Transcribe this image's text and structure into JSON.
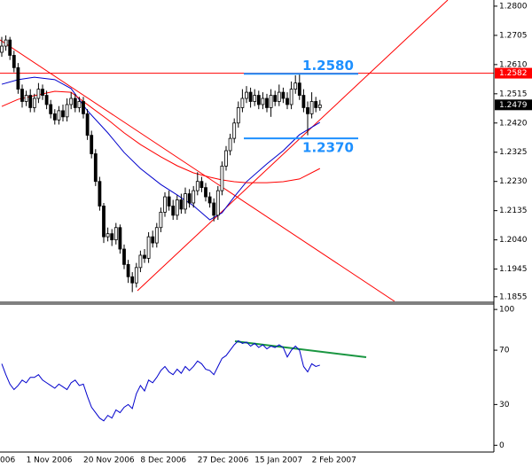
{
  "chart_data": [
    {
      "type": "candlestick",
      "ylim": [
        1.184,
        1.282
      ],
      "yticks": [
        {
          "value": 1.28,
          "label": "1.2800"
        },
        1.2705,
        {
          "value": 1.261,
          "label": "1.2610"
        },
        1.2515,
        {
          "value": 1.242,
          "label": "1.2420"
        },
        1.2325,
        {
          "value": 1.223,
          "label": "1.2230"
        },
        1.2135,
        {
          "value": 1.204,
          "label": "1.2040"
        },
        1.1945,
        1.1855
      ],
      "color": "#000000",
      "open": [
        1.265,
        1.267,
        1.269,
        1.264,
        1.26,
        1.253,
        1.249,
        1.251,
        1.247,
        1.25,
        1.253,
        1.251,
        1.248,
        1.245,
        1.243,
        1.246,
        1.244,
        1.248,
        1.25,
        1.247,
        1.249,
        1.245,
        1.238,
        1.232,
        1.223,
        1.215,
        1.205,
        1.206,
        1.204,
        1.208,
        1.201,
        1.196,
        1.192,
        1.19,
        1.195,
        1.199,
        1.198,
        1.205,
        1.203,
        1.208,
        1.213,
        1.218,
        1.215,
        1.212,
        1.217,
        1.214,
        1.219,
        1.216,
        1.22,
        1.223,
        1.221,
        1.218,
        1.216,
        1.212,
        1.22,
        1.228,
        1.233,
        1.237,
        1.242,
        1.247,
        1.25,
        1.252,
        1.249,
        1.251,
        1.248,
        1.25,
        1.247,
        1.251,
        1.249,
        1.252,
        1.25,
        1.248,
        1.253,
        1.255,
        1.251,
        1.247,
        1.245,
        1.249,
        1.247
      ],
      "high": [
        1.27,
        1.2705,
        1.27,
        1.2655,
        1.2615,
        1.2545,
        1.2525,
        1.253,
        1.2515,
        1.255,
        1.2545,
        1.2525,
        1.2495,
        1.2465,
        1.2475,
        1.248,
        1.25,
        1.252,
        1.2515,
        1.2505,
        1.2505,
        1.2465,
        1.2395,
        1.2335,
        1.2245,
        1.216,
        1.208,
        1.2075,
        1.2095,
        1.209,
        1.2025,
        1.1975,
        1.1935,
        1.1965,
        1.2005,
        1.201,
        1.2065,
        1.207,
        1.2095,
        1.2145,
        1.2195,
        1.22,
        1.217,
        1.2185,
        1.219,
        1.221,
        1.2205,
        1.2215,
        1.226,
        1.2245,
        1.2225,
        1.2195,
        1.2175,
        1.2215,
        1.2295,
        1.2345,
        1.2385,
        1.2435,
        1.249,
        1.253,
        1.254,
        1.2535,
        1.253,
        1.2525,
        1.252,
        1.2515,
        1.253,
        1.2525,
        1.2545,
        1.2535,
        1.252,
        1.2555,
        1.2575,
        1.258,
        1.253,
        1.249,
        1.252,
        1.2505,
        1.2495
      ],
      "low": [
        1.2635,
        1.2655,
        1.2625,
        1.2585,
        1.2515,
        1.247,
        1.2475,
        1.2455,
        1.2455,
        1.2485,
        1.2495,
        1.2465,
        1.2435,
        1.2415,
        1.2415,
        1.2425,
        1.2425,
        1.2465,
        1.2455,
        1.2455,
        1.2435,
        1.2365,
        1.2305,
        1.2215,
        1.2135,
        1.203,
        1.2035,
        1.202,
        1.2025,
        1.1995,
        1.1945,
        1.19,
        1.187,
        1.1885,
        1.1935,
        1.1965,
        1.1965,
        1.2015,
        1.2015,
        1.2065,
        1.2115,
        1.2135,
        1.2105,
        1.2105,
        1.2125,
        1.2125,
        1.2145,
        1.2145,
        1.2185,
        1.2195,
        1.2165,
        1.2145,
        1.21,
        1.2105,
        1.2185,
        1.2265,
        1.2315,
        1.2355,
        1.2405,
        1.2455,
        1.2485,
        1.247,
        1.2475,
        1.2465,
        1.2465,
        1.2455,
        1.244,
        1.2475,
        1.2475,
        1.2485,
        1.2465,
        1.2465,
        1.2515,
        1.2495,
        1.2455,
        1.238,
        1.2435,
        1.2455,
        1.246
      ],
      "close": [
        1.267,
        1.269,
        1.264,
        1.26,
        1.253,
        1.249,
        1.251,
        1.247,
        1.25,
        1.253,
        1.251,
        1.248,
        1.245,
        1.243,
        1.246,
        1.244,
        1.248,
        1.25,
        1.247,
        1.249,
        1.245,
        1.238,
        1.232,
        1.223,
        1.215,
        1.205,
        1.206,
        1.204,
        1.208,
        1.201,
        1.196,
        1.192,
        1.19,
        1.195,
        1.199,
        1.198,
        1.205,
        1.203,
        1.208,
        1.213,
        1.218,
        1.215,
        1.212,
        1.217,
        1.214,
        1.219,
        1.216,
        1.22,
        1.223,
        1.221,
        1.218,
        1.216,
        1.212,
        1.22,
        1.228,
        1.233,
        1.237,
        1.242,
        1.247,
        1.25,
        1.252,
        1.249,
        1.251,
        1.248,
        1.25,
        1.247,
        1.251,
        1.249,
        1.252,
        1.25,
        1.248,
        1.253,
        1.255,
        1.251,
        1.247,
        1.245,
        1.249,
        1.247,
        1.2479
      ],
      "overlays": [
        {
          "color": "#0000cc",
          "x": [
            0,
            4,
            8,
            13,
            17,
            21,
            26,
            30,
            34,
            39,
            43,
            47,
            51,
            54,
            57,
            60,
            65,
            69,
            73,
            78
          ],
          "values": [
            1.2546,
            1.2561,
            1.2569,
            1.2561,
            1.2532,
            1.246,
            1.2388,
            1.2324,
            1.2272,
            1.222,
            1.2186,
            1.2151,
            1.2105,
            1.2128,
            1.218,
            1.2229,
            1.2287,
            1.233,
            1.2382,
            1.2422
          ]
        },
        {
          "color": "#ff0000",
          "x": [
            0,
            4,
            8,
            13,
            17,
            21,
            26,
            30,
            34,
            39,
            43,
            47,
            51,
            54,
            57,
            60,
            65,
            69,
            73,
            78
          ],
          "values": [
            1.2474,
            1.2497,
            1.2509,
            1.2523,
            1.252,
            1.248,
            1.2431,
            1.2388,
            1.235,
            1.231,
            1.2281,
            1.2258,
            1.2244,
            1.2235,
            1.2229,
            1.2226,
            1.2226,
            1.2229,
            1.2238,
            1.2272
          ]
        }
      ],
      "levels": [
        {
          "value": 1.258,
          "label": "1.2580",
          "color": "#1e90ff"
        },
        {
          "value": 1.237,
          "label": "1.2370",
          "color": "#1e90ff"
        }
      ],
      "reference_line": {
        "value": 1.2582,
        "label": "1.2582",
        "color": "#ff0000"
      },
      "current_price": {
        "value": 1.2479,
        "label": "1.2479"
      }
    },
    {
      "type": "line",
      "ylim": [
        -5,
        104
      ],
      "yticks": [
        0,
        30,
        70,
        100
      ],
      "color": "#0000cc",
      "values": [
        60,
        52,
        45,
        41,
        44,
        48,
        46,
        50,
        50,
        52,
        48,
        46,
        44,
        42,
        45,
        43,
        41,
        46,
        48,
        44,
        45,
        36,
        28,
        24,
        20,
        18,
        22,
        20,
        26,
        24,
        28,
        30,
        27,
        38,
        44,
        40,
        48,
        46,
        50,
        55,
        58,
        54,
        52,
        56,
        53,
        58,
        55,
        58,
        62,
        60,
        56,
        55,
        52,
        58,
        64,
        66,
        70,
        74,
        77,
        75,
        76,
        73,
        75,
        72,
        74,
        71,
        73,
        72,
        74,
        72,
        65,
        70,
        73,
        70,
        58,
        54,
        60,
        58,
        59
      ],
      "categories": [
        "006",
        null,
        null,
        null,
        null,
        null,
        "1 Nov 2006",
        null,
        null,
        null,
        null,
        null,
        null,
        null,
        null,
        null,
        null,
        null,
        null,
        null,
        "20 Nov 2006",
        null,
        null,
        null,
        null,
        null,
        null,
        null,
        null,
        null,
        null,
        null,
        null,
        null,
        "8 Dec 2006",
        null,
        null,
        null,
        null,
        null,
        null,
        null,
        null,
        null,
        null,
        null,
        null,
        null,
        "27 Dec 2006",
        null,
        null,
        null,
        null,
        null,
        null,
        null,
        null,
        null,
        null,
        null,
        null,
        null,
        "15 Jan 2007",
        null,
        null,
        null,
        null,
        null,
        null,
        null,
        null,
        null,
        null,
        null,
        null,
        null,
        "2 Feb 2007",
        null,
        null
      ]
    }
  ]
}
